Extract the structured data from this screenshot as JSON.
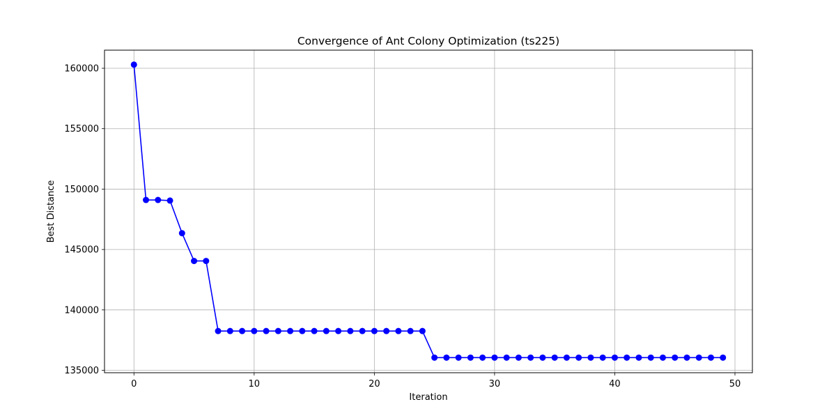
{
  "chart_data": {
    "type": "line",
    "title": "Convergence of Ant Colony Optimization (ts225)",
    "xlabel": "Iteration",
    "ylabel": "Best Distance",
    "xlim": [
      -2.45,
      51.45
    ],
    "ylim": [
      134800,
      161500
    ],
    "xticks": [
      0,
      10,
      20,
      30,
      40,
      50
    ],
    "yticks": [
      135000,
      140000,
      145000,
      150000,
      155000,
      160000
    ],
    "xtick_labels": [
      "0",
      "10",
      "20",
      "30",
      "40",
      "50"
    ],
    "ytick_labels": [
      "135000",
      "140000",
      "145000",
      "150000",
      "155000",
      "160000"
    ],
    "grid": true,
    "series": [
      {
        "color": "#0000ff",
        "marker": "circle",
        "x": [
          0,
          1,
          2,
          3,
          4,
          5,
          6,
          7,
          8,
          9,
          10,
          11,
          12,
          13,
          14,
          15,
          16,
          17,
          18,
          19,
          20,
          21,
          22,
          23,
          24,
          25,
          26,
          27,
          28,
          29,
          30,
          31,
          32,
          33,
          34,
          35,
          36,
          37,
          38,
          39,
          40,
          41,
          42,
          43,
          44,
          45,
          46,
          47,
          48,
          49
        ],
        "values": [
          160300,
          149100,
          149100,
          149050,
          146350,
          144050,
          144050,
          138250,
          138250,
          138250,
          138250,
          138250,
          138250,
          138250,
          138250,
          138250,
          138250,
          138250,
          138250,
          138250,
          138250,
          138250,
          138250,
          138250,
          138250,
          136050,
          136050,
          136050,
          136050,
          136050,
          136050,
          136050,
          136050,
          136050,
          136050,
          136050,
          136050,
          136050,
          136050,
          136050,
          136050,
          136050,
          136050,
          136050,
          136050,
          136050,
          136050,
          136050,
          136050,
          136050
        ]
      }
    ]
  }
}
